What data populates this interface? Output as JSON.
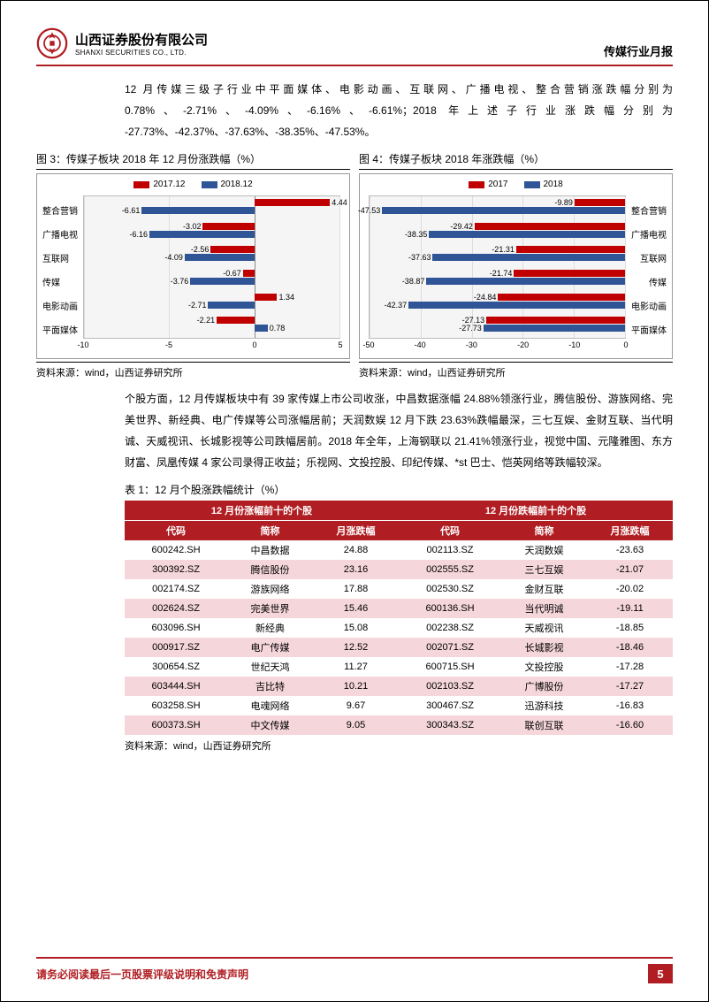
{
  "header": {
    "company_cn": "山西证券股份有限公司",
    "company_en": "SHANXI SECURITIES CO., LTD.",
    "report_type": "传媒行业月报",
    "logo_color": "#b01e23"
  },
  "intro_text": "12 月传媒三级子行业中平面媒体、电影动画、互联网、广播电视、整合营销涨跌幅分别为 0.78%、-2.71%、-4.09%、-6.16%、-6.61%；2018 年上述子行业涨跌幅分别为 -27.73%、-42.37%、-37.63%、-38.35%、-47.53%。",
  "chart3": {
    "title": "图 3：传媒子板块 2018 年 12 月份涨跌幅（%）",
    "source": "资料来源：wind，山西证券研究所",
    "legend": [
      {
        "label": "2017.12",
        "color": "#c00000"
      },
      {
        "label": "2018.12",
        "color": "#2f5597"
      }
    ],
    "categories": [
      "整合营销",
      "广播电视",
      "互联网",
      "传媒",
      "电影动画",
      "平面媒体"
    ],
    "series_2017": [
      4.44,
      -3.02,
      -2.56,
      -0.67,
      1.34,
      -2.21
    ],
    "series_2018": [
      -6.61,
      -6.16,
      -4.09,
      -3.76,
      -2.71,
      0.78
    ],
    "xmin": -10,
    "xmax": 5,
    "xtick_step": 5,
    "xticks": [
      "-10",
      "-5",
      "0",
      "5"
    ],
    "label_side": "left",
    "bg": "#f5f5f5",
    "grid_color": "#dddddd"
  },
  "chart4": {
    "title": "图 4：传媒子板块 2018 年涨跌幅（%）",
    "source": "资料来源：wind，山西证券研究所",
    "legend": [
      {
        "label": "2017",
        "color": "#c00000"
      },
      {
        "label": "2018",
        "color": "#2f5597"
      }
    ],
    "categories": [
      "整合营销",
      "广播电视",
      "互联网",
      "传媒",
      "电影动画",
      "平面媒体"
    ],
    "series_2017": [
      -9.89,
      -29.42,
      -21.31,
      -21.74,
      -24.84,
      -27.13
    ],
    "series_2018": [
      -47.53,
      -38.35,
      -37.63,
      -38.87,
      -42.37,
      -27.73
    ],
    "xmin": -50,
    "xmax": 0,
    "xtick_step": 10,
    "xticks": [
      "-50",
      "-40",
      "-30",
      "-20",
      "-10",
      "0"
    ],
    "label_side": "right",
    "bg": "#f5f5f5",
    "grid_color": "#dddddd"
  },
  "mid_text": "个股方面，12 月传媒板块中有 39 家传媒上市公司收涨，中昌数据涨幅 24.88%领涨行业，腾信股份、游族网络、完美世界、新经典、电广传媒等公司涨幅居前；天润数娱 12 月下跌 23.63%跌幅最深，三七互娱、金财互联、当代明诚、天威视讯、长城影视等公司跌幅居前。2018 年全年，上海钢联以 21.41%领涨行业，视觉中国、元隆雅图、东方财富、凤凰传媒 4 家公司录得正收益；乐视网、文投控股、印纪传媒、*st 巴士、恺英网络等跌幅较深。",
  "table": {
    "title": "表 1：12 月个股涨跌幅统计（%）",
    "header_group_left": "12 月份涨幅前十的个股",
    "header_group_right": "12 月份跌幅前十的个股",
    "columns": [
      "代码",
      "简称",
      "月涨跌幅",
      "代码",
      "简称",
      "月涨跌幅"
    ],
    "rows": [
      [
        "600242.SH",
        "中昌数据",
        "24.88",
        "002113.SZ",
        "天润数娱",
        "-23.63"
      ],
      [
        "300392.SZ",
        "腾信股份",
        "23.16",
        "002555.SZ",
        "三七互娱",
        "-21.07"
      ],
      [
        "002174.SZ",
        "游族网络",
        "17.88",
        "002530.SZ",
        "金财互联",
        "-20.02"
      ],
      [
        "002624.SZ",
        "完美世界",
        "15.46",
        "600136.SH",
        "当代明诚",
        "-19.11"
      ],
      [
        "603096.SH",
        "新经典",
        "15.08",
        "002238.SZ",
        "天威视讯",
        "-18.85"
      ],
      [
        "000917.SZ",
        "电广传媒",
        "12.52",
        "002071.SZ",
        "长城影视",
        "-18.46"
      ],
      [
        "300654.SZ",
        "世纪天鸿",
        "11.27",
        "600715.SH",
        "文投控股",
        "-17.28"
      ],
      [
        "603444.SH",
        "吉比特",
        "10.21",
        "002103.SZ",
        "广博股份",
        "-17.27"
      ],
      [
        "603258.SH",
        "电魂网络",
        "9.67",
        "300467.SZ",
        "迅游科技",
        "-16.83"
      ],
      [
        "600373.SH",
        "中文传媒",
        "9.05",
        "300343.SZ",
        "联创互联",
        "-16.60"
      ]
    ],
    "source": "资料来源：wind，山西证券研究所",
    "header_bg": "#b01e23",
    "header_fg": "#ffffff",
    "row_even_bg": "#f5d6db",
    "row_odd_bg": "#ffffff"
  },
  "footer": {
    "disclaimer": "请务必阅读最后一页股票评级说明和免责声明",
    "page": "5",
    "color": "#b01e23"
  }
}
